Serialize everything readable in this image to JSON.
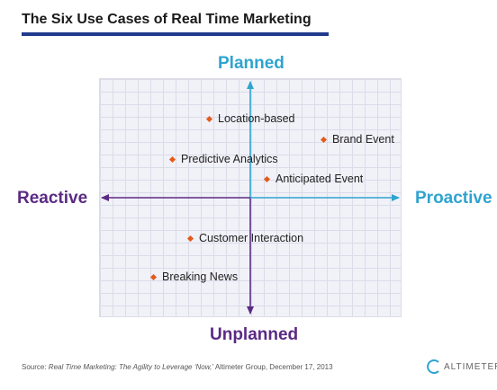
{
  "title": "The Six Use Cases of Real Time Marketing",
  "axes": {
    "top": "Planned",
    "bottom": "Unplanned",
    "left": "Reactive",
    "right": "Proactive"
  },
  "use_cases": [
    {
      "label": "Location-based"
    },
    {
      "label": "Brand Event"
    },
    {
      "label": "Predictive Analytics"
    },
    {
      "label": "Anticipated Event"
    },
    {
      "label": "Customer Interaction"
    },
    {
      "label": "Breaking News"
    }
  ],
  "source": {
    "prefix": "Source: ",
    "publication": "Real Time Marketing: The Agility to Leverage ‘Now,’",
    "suffix": " Altimeter Group, December 17, 2013"
  },
  "logo_text": "ALTIMETER",
  "colors": {
    "title_rule": "#1f3a8c",
    "proactive_planned": "#2ea4cf",
    "reactive_unplanned": "#5b2a84",
    "marker": "#e35b1c"
  }
}
